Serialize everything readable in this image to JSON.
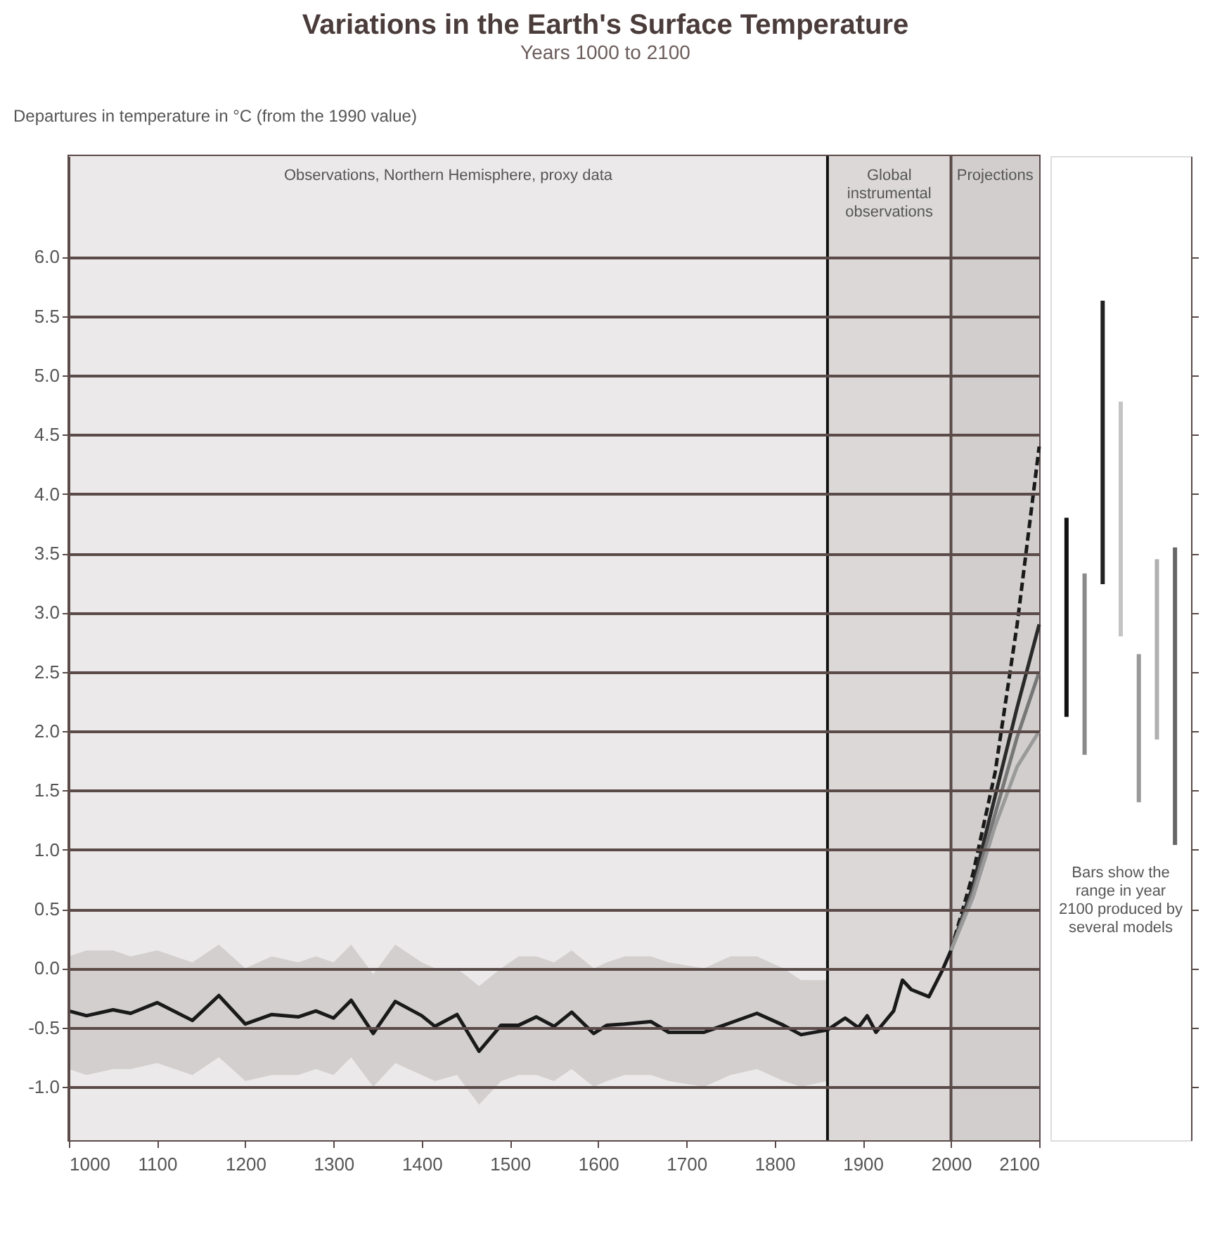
{
  "chart_data": [
    {
      "type": "line",
      "title": "Variations in the Earth's Surface Temperature",
      "subtitle": "Years 1000 to 2100",
      "ylabel": "Departures in temperature in °C (from the 1990 value)",
      "xlim": [
        1000,
        2100
      ],
      "xticks": [
        1000,
        1100,
        1200,
        1300,
        1400,
        1500,
        1600,
        1700,
        1800,
        1900,
        2000,
        2100
      ],
      "ylim": [
        -1.45,
        6.85
      ],
      "yticks": [
        {
          "value": -1,
          "label": "-1.0"
        },
        {
          "value": -0.5,
          "label": "-0.5"
        },
        {
          "value": 0,
          "label": "0.0"
        },
        {
          "value": 0.5,
          "label": "0.5"
        },
        {
          "value": 1,
          "label": "1.0"
        },
        {
          "value": 1.5,
          "label": "1.5"
        },
        {
          "value": 2,
          "label": "2.0"
        },
        {
          "value": 2.5,
          "label": "2.5"
        },
        {
          "value": 3,
          "label": "3.0"
        },
        {
          "value": 3.5,
          "label": "3.5"
        },
        {
          "value": 4,
          "label": "4.0"
        },
        {
          "value": 4.5,
          "label": "4.5"
        },
        {
          "value": 5,
          "label": "5.0"
        },
        {
          "value": 5.5,
          "label": "5.5"
        },
        {
          "value": 6,
          "label": "6.0"
        }
      ],
      "grid": "y",
      "bands": [
        {
          "axis": "x",
          "from": 1000,
          "to": 1860,
          "label": "Observations, Northern Hemisphere, proxy data",
          "color": "#ebe9e9"
        },
        {
          "axis": "x",
          "from": 1860,
          "to": 2000,
          "label": "Global instrumental observations",
          "color": "#dcd8d8"
        },
        {
          "axis": "x",
          "from": 2000,
          "to": 2100,
          "label": "Projections",
          "color": "#d2cece"
        }
      ],
      "ref_lines": [
        {
          "axis": "x",
          "value": 1860,
          "color": "#111111"
        },
        {
          "axis": "x",
          "value": 2000,
          "color": "#5a4a48"
        }
      ],
      "series": [
        {
          "color": "#1a1a1a",
          "x": [
            1000,
            1020,
            1050,
            1070,
            1100,
            1140,
            1170,
            1200,
            1230,
            1260,
            1280,
            1300,
            1320,
            1345,
            1370,
            1400,
            1415,
            1440,
            1465,
            1490,
            1510,
            1530,
            1550,
            1570,
            1595,
            1610,
            1630,
            1660,
            1680,
            1720,
            1750,
            1780,
            1810,
            1830,
            1860,
            1880,
            1895,
            1905,
            1915,
            1935,
            1945,
            1955,
            1975,
            1990,
            2000
          ],
          "values": [
            -0.36,
            -0.4,
            -0.35,
            -0.38,
            -0.29,
            -0.44,
            -0.23,
            -0.47,
            -0.39,
            -0.41,
            -0.36,
            -0.42,
            -0.27,
            -0.55,
            -0.28,
            -0.4,
            -0.49,
            -0.39,
            -0.7,
            -0.48,
            -0.48,
            -0.41,
            -0.49,
            -0.37,
            -0.55,
            -0.48,
            -0.47,
            -0.45,
            -0.54,
            -0.54,
            -0.46,
            -0.38,
            -0.48,
            -0.56,
            -0.52,
            -0.42,
            -0.5,
            -0.4,
            -0.54,
            -0.36,
            -0.1,
            -0.18,
            -0.24,
            -0.02,
            0.15
          ],
          "upper": [
            0.1,
            0.15,
            0.15,
            0.1,
            0.15,
            0.05,
            0.2,
            0.0,
            0.1,
            0.05,
            0.1,
            0.05,
            0.2,
            -0.05,
            0.2,
            0.05,
            0.0,
            0.0,
            -0.15,
            0.0,
            0.1,
            0.1,
            0.05,
            0.15,
            0.0,
            0.05,
            0.1,
            0.1,
            0.05,
            0.0,
            0.1,
            0.1,
            0.0,
            -0.1,
            -0.1,
            null,
            null,
            null,
            null,
            null,
            null,
            null,
            null,
            null,
            null
          ],
          "lower": [
            -0.85,
            -0.9,
            -0.85,
            -0.85,
            -0.8,
            -0.9,
            -0.75,
            -0.95,
            -0.9,
            -0.9,
            -0.85,
            -0.9,
            -0.75,
            -1.0,
            -0.8,
            -0.9,
            -0.95,
            -0.9,
            -1.15,
            -0.95,
            -0.9,
            -0.9,
            -0.95,
            -0.85,
            -1.0,
            -0.95,
            -0.9,
            -0.9,
            -0.95,
            -1.0,
            -0.9,
            -0.85,
            -0.95,
            -1.0,
            -0.95,
            null,
            null,
            null,
            null,
            null,
            null,
            null,
            null,
            null,
            null
          ]
        },
        {
          "color": "#1a1a1a",
          "line_style": "dashed",
          "x": [
            2000,
            2025,
            2050,
            2075,
            2100
          ],
          "values": [
            0.15,
            0.8,
            1.65,
            2.9,
            4.4
          ]
        },
        {
          "color": "#2a2a2a",
          "line_style": "solid",
          "x": [
            2000,
            2025,
            2050,
            2075,
            2100
          ],
          "values": [
            0.15,
            0.7,
            1.45,
            2.2,
            2.9
          ]
        },
        {
          "color": "#777777",
          "line_style": "solid",
          "x": [
            2000,
            2025,
            2050,
            2075,
            2100
          ],
          "values": [
            0.15,
            0.65,
            1.3,
            1.95,
            2.5
          ]
        },
        {
          "color": "#9a9a9a",
          "line_style": "solid",
          "x": [
            2000,
            2025,
            2050,
            2075,
            2100
          ],
          "values": [
            0.15,
            0.6,
            1.2,
            1.7,
            2.0
          ]
        }
      ]
    },
    {
      "type": "bar",
      "categories": [
        null,
        null,
        null,
        null,
        null,
        null,
        null
      ],
      "ylim": [
        -1.45,
        6.85
      ],
      "yticks": [
        {
          "value": -1,
          "label": null
        },
        {
          "value": -0.5,
          "label": null
        },
        {
          "value": 0,
          "label": null
        },
        {
          "value": 0.5,
          "label": null
        },
        {
          "value": 1,
          "label": null
        },
        {
          "value": 1.5,
          "label": null
        },
        {
          "value": 2,
          "label": null
        },
        {
          "value": 2.5,
          "label": null
        },
        {
          "value": 3,
          "label": null
        },
        {
          "value": 3.5,
          "label": null
        },
        {
          "value": 4,
          "label": null
        },
        {
          "value": 4.5,
          "label": null
        },
        {
          "value": 5,
          "label": null
        },
        {
          "value": 5.5,
          "label": null
        },
        {
          "value": 6,
          "label": null
        }
      ],
      "tick_labels": false,
      "base": [
        2.12,
        1.8,
        3.24,
        2.8,
        1.4,
        1.93,
        1.04
      ],
      "values": [
        1.68,
        1.53,
        2.39,
        1.98,
        1.25,
        1.52,
        2.51
      ],
      "colors": [
        "#111111",
        "#8a8a8a",
        "#222222",
        "#c4c4c4",
        "#999999",
        "#b0b0b0",
        "#666666"
      ],
      "annotations": [
        "Bars show the range in year 2100 produced by several models"
      ]
    }
  ]
}
